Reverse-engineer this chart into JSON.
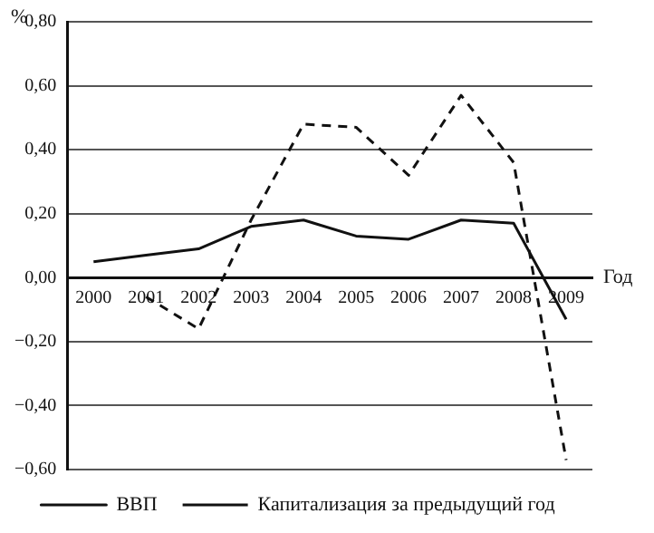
{
  "chart_data": {
    "type": "line",
    "ylabel": "%",
    "xlabel": "Год",
    "categories": [
      "2000",
      "2001",
      "2002",
      "2003",
      "2004",
      "2005",
      "2006",
      "2007",
      "2008",
      "2009"
    ],
    "series": [
      {
        "name": "ВВП",
        "color": "#111111",
        "line_style": "solid",
        "values": [
          0.05,
          0.07,
          0.09,
          0.16,
          0.18,
          0.13,
          0.12,
          0.18,
          0.17,
          -0.13
        ]
      },
      {
        "name": "Капитализация за предыдущий год",
        "color": "#111111",
        "line_style": "dashed",
        "values": [
          null,
          -0.06,
          -0.16,
          0.18,
          0.48,
          0.47,
          0.32,
          0.57,
          0.36,
          -0.57
        ]
      }
    ],
    "ylim": [
      -0.6,
      0.8
    ],
    "yticks": [
      {
        "value": -0.6,
        "label": "−0,60"
      },
      {
        "value": -0.4,
        "label": "−0,40"
      },
      {
        "value": -0.2,
        "label": "−0,20"
      },
      {
        "value": 0,
        "label": "0,00"
      },
      {
        "value": 0.2,
        "label": "0,20"
      },
      {
        "value": 0.4,
        "label": "0,40"
      },
      {
        "value": 0.6,
        "label": "0,60"
      },
      {
        "value": 0.8,
        "label": "0,80"
      }
    ],
    "grid": "y",
    "legend": "bottom",
    "marker": "none"
  }
}
